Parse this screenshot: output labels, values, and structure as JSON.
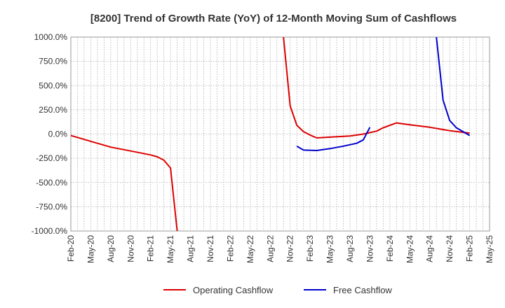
{
  "chart_data": {
    "type": "line",
    "title": "[8200]  Trend of Growth Rate (YoY) of 12-Month Moving Sum of Cashflows",
    "xlabel": "",
    "ylabel": "",
    "ylim": [
      -1000,
      1000
    ],
    "y_ticks": [
      1000,
      750,
      500,
      250,
      0,
      -250,
      -500,
      -750,
      -1000
    ],
    "y_tick_labels": [
      "1000.0%",
      "750.0%",
      "500.0%",
      "250.0%",
      "0.0%",
      "-250.0%",
      "-500.0%",
      "-750.0%",
      "-1000.0%"
    ],
    "x_range": [
      "2020-02",
      "2025-05"
    ],
    "x_tick_labels": [
      "Feb-20",
      "May-20",
      "Aug-20",
      "Nov-20",
      "Feb-21",
      "May-21",
      "Aug-21",
      "Nov-21",
      "Feb-22",
      "May-22",
      "Aug-22",
      "Nov-22",
      "Feb-23",
      "May-23",
      "Aug-23",
      "Nov-23",
      "Feb-24",
      "May-24",
      "Aug-24",
      "Nov-24",
      "Feb-25",
      "May-25"
    ],
    "grid": true,
    "legend_position": "bottom",
    "series": [
      {
        "name": "Operating Cashflow",
        "color": "#dd0000",
        "segments": [
          [
            [
              "2020-02",
              -15
            ],
            [
              "2020-05",
              -75
            ],
            [
              "2020-08",
              -135
            ],
            [
              "2020-11",
              -175
            ],
            [
              "2021-02",
              -215
            ],
            [
              "2021-03",
              -235
            ],
            [
              "2021-04",
              -270
            ],
            [
              "2021-05",
              -350
            ],
            [
              "2021-06",
              -1000
            ]
          ],
          [
            [
              "2022-10",
              1000
            ],
            [
              "2022-11",
              290
            ],
            [
              "2022-12",
              90
            ],
            [
              "2023-01",
              25
            ],
            [
              "2023-02",
              -10
            ],
            [
              "2023-03",
              -40
            ],
            [
              "2023-05",
              -32
            ],
            [
              "2023-08",
              -20
            ],
            [
              "2023-10",
              0
            ],
            [
              "2023-12",
              30
            ],
            [
              "2024-01",
              65
            ],
            [
              "2024-03",
              115
            ],
            [
              "2024-05",
              95
            ],
            [
              "2024-08",
              70
            ],
            [
              "2024-11",
              35
            ],
            [
              "2025-02",
              10
            ]
          ]
        ]
      },
      {
        "name": "Free Cashflow",
        "color": "#0000cc",
        "segments": [
          [
            [
              "2022-12",
              -125
            ],
            [
              "2023-01",
              -165
            ],
            [
              "2023-03",
              -170
            ],
            [
              "2023-05",
              -150
            ],
            [
              "2023-07",
              -125
            ],
            [
              "2023-09",
              -95
            ],
            [
              "2023-10",
              -60
            ],
            [
              "2023-11",
              70
            ]
          ],
          [
            [
              "2024-09",
              1000
            ],
            [
              "2024-10",
              350
            ],
            [
              "2024-11",
              140
            ],
            [
              "2024-12",
              65
            ],
            [
              "2025-01",
              25
            ],
            [
              "2025-02",
              -15
            ]
          ]
        ]
      }
    ]
  }
}
